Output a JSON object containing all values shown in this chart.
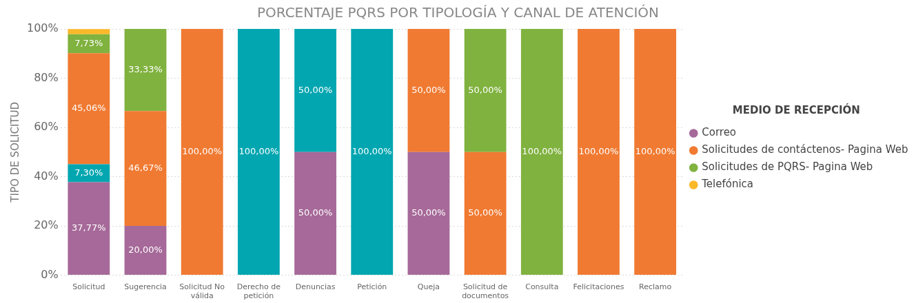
{
  "chart_data": {
    "type": "bar",
    "title": "PORCENTAJE PQRS POR TIPOLOGÍA Y CANAL DE ATENCIÓN",
    "ylabel": "TIPO DE SOLICITUD",
    "legend_title": "MEDIO DE RECEPCIÓN",
    "stacked": true,
    "legend": "right",
    "grid": "y",
    "categories": [
      "Solicitud",
      "Sugerencia",
      "Solicitud No válida",
      "Derecho de petición",
      "Denuncias",
      "Petición",
      "Queja",
      "Solicitud de documentos",
      "Consulta",
      "Felicitaciones",
      "Reclamo"
    ],
    "ylim": [
      0,
      100
    ],
    "yticks": [
      {
        "value": 0,
        "label": "0%"
      },
      {
        "value": 20,
        "label": "20%"
      },
      {
        "value": 40,
        "label": "40%"
      },
      {
        "value": 60,
        "label": "60%"
      },
      {
        "value": 80,
        "label": "80%"
      },
      {
        "value": 100,
        "label": "100%"
      }
    ],
    "series": [
      {
        "name": "Correo",
        "color": "#a66999",
        "values": [
          37.77,
          20,
          null,
          null,
          50,
          null,
          50,
          null,
          null,
          null,
          null
        ],
        "value_labels": [
          "37,77%",
          "20,00%",
          null,
          null,
          "50,00%",
          null,
          "50,00%",
          null,
          null,
          null,
          null
        ]
      },
      {
        "color": "#01a6b0",
        "values": [
          7.3,
          null,
          null,
          100,
          50,
          100,
          null,
          null,
          null,
          null,
          null
        ],
        "value_labels": [
          "7,30%",
          null,
          null,
          "100,00%",
          "50,00%",
          "100,00%",
          null,
          null,
          null,
          null,
          null
        ]
      },
      {
        "name": "Solicitudes de contáctenos- Pagina Web",
        "color": "#f07a32",
        "values": [
          45.06,
          46.67,
          100,
          null,
          null,
          null,
          50,
          50,
          null,
          100,
          100
        ],
        "value_labels": [
          "45,06%",
          "46,67%",
          "100,00%",
          null,
          null,
          null,
          "50,00%",
          "50,00%",
          null,
          "100,00%",
          "100,00%"
        ]
      },
      {
        "name": "Solicitudes de PQRS- Pagina Web",
        "color": "#80b23f",
        "values": [
          7.73,
          33.33,
          null,
          null,
          null,
          null,
          null,
          50,
          100,
          null,
          null
        ],
        "value_labels": [
          "7,73%",
          "33,33%",
          null,
          null,
          null,
          null,
          null,
          "50,00%",
          "100,00%",
          null,
          null
        ]
      },
      {
        "name": "Telefónica",
        "color": "#fbb829",
        "values": [
          2.1,
          null,
          null,
          null,
          null,
          null,
          null,
          null,
          null,
          null,
          null
        ]
      }
    ]
  }
}
